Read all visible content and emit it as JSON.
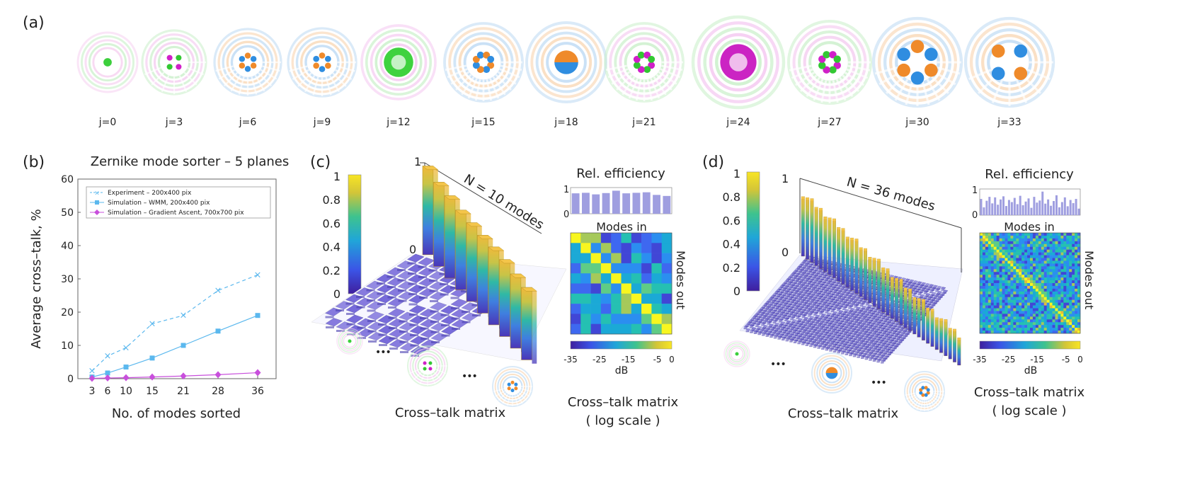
{
  "panel_a": {
    "label": "(a)",
    "modes": [
      {
        "label": "j=0",
        "scheme": "green-center"
      },
      {
        "label": "j=3",
        "scheme": "magenta-green-quad"
      },
      {
        "label": "j=6",
        "scheme": "orange-blue-hex"
      },
      {
        "label": "j=9",
        "scheme": "orange-blue-hex"
      },
      {
        "label": "j=12",
        "scheme": "green-ring"
      },
      {
        "label": "j=15",
        "scheme": "orange-blue-oct"
      },
      {
        "label": "j=18",
        "scheme": "orange-blue-half"
      },
      {
        "label": "j=21",
        "scheme": "magenta-green-petal"
      },
      {
        "label": "j=24",
        "scheme": "magenta-ring"
      },
      {
        "label": "j=27",
        "scheme": "magenta-green-petal"
      },
      {
        "label": "j=30",
        "scheme": "orange-blue-hex-large"
      },
      {
        "label": "j=33",
        "scheme": "orange-blue-quad-large"
      }
    ]
  },
  "panel_b": {
    "label": "(b)",
    "chart_data": {
      "type": "line",
      "title": "Zernike  mode  sorter – 5  planes",
      "xlabel": "No.  of  modes  sorted",
      "ylabel": "Average  cross–talk,  %",
      "categories": [
        3,
        6,
        10,
        15,
        21,
        28,
        36
      ],
      "ylim": [
        0,
        60
      ],
      "yticks": [
        0,
        10,
        20,
        30,
        40,
        50,
        60
      ],
      "legend_position": "top",
      "series": [
        {
          "name": "Experiment  –  200x400  pix",
          "marker": "x",
          "style": "dashed",
          "color": "#5bb8ee",
          "values": [
            2.3,
            6.8,
            9.3,
            16.5,
            19.0,
            26.5,
            31.2
          ]
        },
        {
          "name": "Simulation  –  WMM,  200x400  pix",
          "marker": "square",
          "style": "solid",
          "color": "#5bb8ee",
          "values": [
            0.5,
            1.7,
            3.5,
            6.2,
            10.0,
            14.3,
            19.0
          ]
        },
        {
          "name": "Simulation  –  Gradient  Ascent,  700x700  pix",
          "marker": "diamond",
          "style": "solid",
          "color": "#c84fdc",
          "values": [
            0.1,
            0.2,
            0.3,
            0.5,
            0.8,
            1.2,
            1.8
          ]
        }
      ]
    }
  },
  "panel_c": {
    "label": "(c)",
    "colorbar_ticks": [
      "1",
      "0.8",
      "0.6",
      "0.4",
      "0.2",
      "0"
    ],
    "axis_top": "1",
    "axis_zero": "0",
    "n_modes_label": "N = 10  modes",
    "bar_heights": [
      0.98,
      0.93,
      0.91,
      0.88,
      0.87,
      0.86,
      0.86,
      0.85,
      0.82,
      0.8
    ],
    "rel_efficiency": {
      "title": "Rel.  efficiency",
      "ytick_top": "1",
      "ytick_bottom": "0",
      "values": [
        0.78,
        0.8,
        0.74,
        0.79,
        0.88,
        0.78,
        0.8,
        0.82,
        0.72,
        0.68
      ]
    },
    "modes_in": "Modes  in",
    "modes_out": "Modes  out",
    "db_ticks": [
      "-35",
      "-25",
      "-15",
      "-5",
      "0"
    ],
    "db_unit": "dB",
    "crosstalk_caption": "Cross–talk  matrix",
    "log_caption_1": "Cross–talk  matrix",
    "log_caption_2": "( log  scale )",
    "ellipsis": "•••"
  },
  "panel_d": {
    "label": "(d)",
    "colorbar_ticks": [
      "1",
      "0.8",
      "0.6",
      "0.4",
      "0.2",
      "0"
    ],
    "axis_top": "1",
    "axis_zero": "0",
    "n_modes_label": "N = 36  modes",
    "rel_efficiency": {
      "title": "Rel.  efficiency",
      "ytick_top": "1",
      "ytick_bottom": "0",
      "values": [
        0.62,
        0.3,
        0.55,
        0.7,
        0.45,
        0.68,
        0.4,
        0.6,
        0.72,
        0.35,
        0.58,
        0.5,
        0.66,
        0.42,
        0.74,
        0.38,
        0.52,
        0.64,
        0.28,
        0.7,
        0.48,
        0.56,
        0.9,
        0.44,
        0.6,
        0.36,
        0.54,
        0.76,
        0.3,
        0.5,
        0.68,
        0.34,
        0.58,
        0.46,
        0.62,
        0.25
      ]
    },
    "modes_in": "Modes  in",
    "modes_out": "Modes  out",
    "db_ticks": [
      "-35",
      "-25",
      "-15",
      "-5",
      "0"
    ],
    "db_unit": "dB",
    "crosstalk_caption": "Cross–talk  matrix",
    "log_caption_1": "Cross–talk  matrix",
    "log_caption_2": "( log  scale )",
    "ellipsis": "•••"
  }
}
